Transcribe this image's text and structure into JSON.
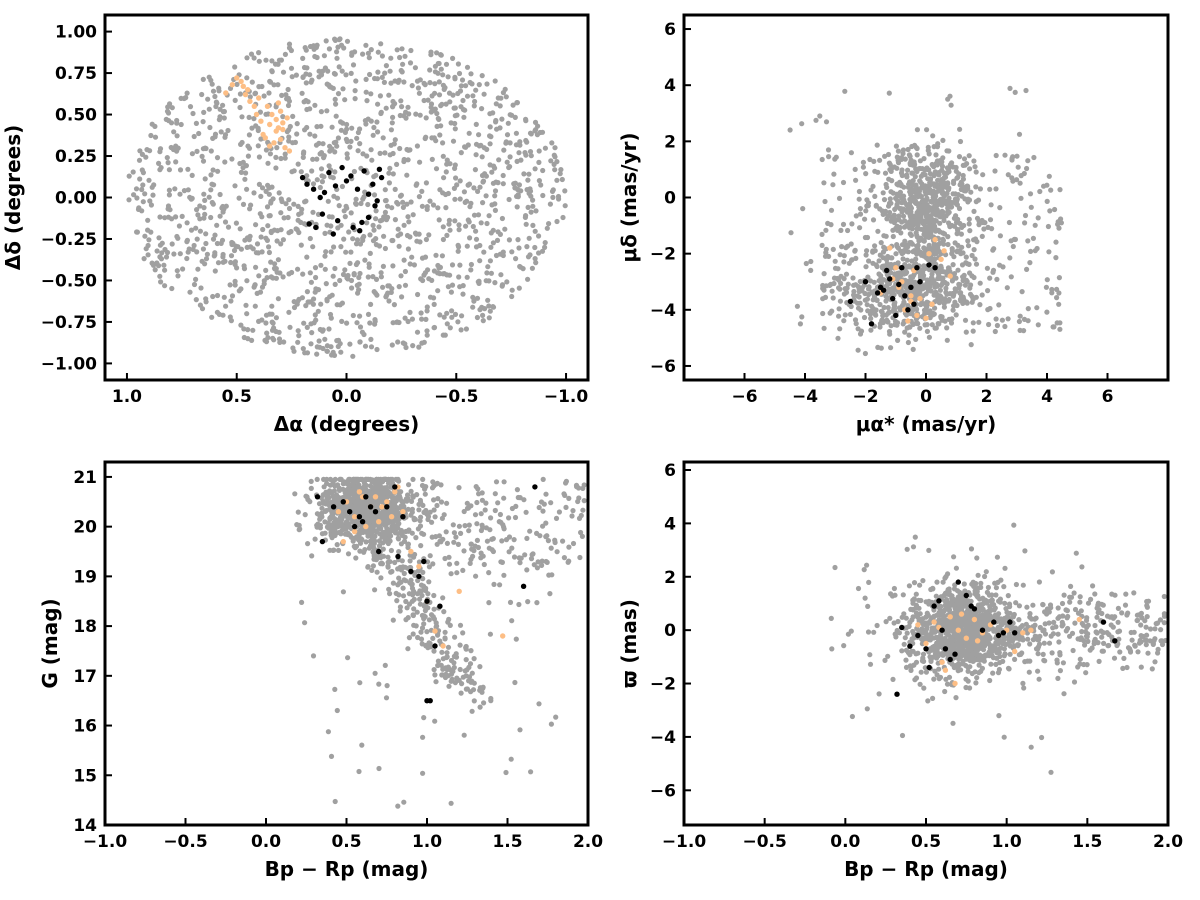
{
  "colors": {
    "field": "#a0a0a0",
    "orange_group": "#fdbe85",
    "black_group": "#000000"
  },
  "chart_data": [
    {
      "type": "scatter",
      "panel": "top-left",
      "xlabel": "Δα (degrees)",
      "ylabel": "Δδ (degrees)",
      "xlim": [
        1.1,
        -1.1
      ],
      "ylim": [
        -1.1,
        1.1
      ],
      "x_inverted": true,
      "xticks": [
        "1.0",
        "0.5",
        "0.0",
        "−0.5",
        "−1.0"
      ],
      "yticks": [
        "1.00",
        "0.75",
        "0.50",
        "0.25",
        "0.00",
        "−0.25",
        "−0.50",
        "−0.75",
        "−1.00"
      ],
      "grid": false,
      "field_shape": "ellipse centered at (0,0), rx≈1.0 deg, ry≈0.95 deg, uniformly filled",
      "series": [
        {
          "color": "#fdbe85",
          "x": [
            0.28,
            0.3,
            0.32,
            0.29,
            0.34,
            0.36,
            0.31,
            0.27,
            0.38,
            0.33,
            0.35,
            0.3,
            0.4,
            0.45,
            0.48,
            0.5,
            0.52,
            0.46,
            0.44,
            0.42,
            0.39,
            0.37,
            0.26,
            0.32,
            0.29,
            0.41,
            0.55,
            0.47,
            0.35,
            0.31
          ],
          "y": [
            0.3,
            0.35,
            0.4,
            0.45,
            0.5,
            0.55,
            0.42,
            0.48,
            0.38,
            0.33,
            0.44,
            0.52,
            0.6,
            0.65,
            0.7,
            0.72,
            0.68,
            0.62,
            0.58,
            0.55,
            0.46,
            0.36,
            0.28,
            0.47,
            0.41,
            0.5,
            0.63,
            0.67,
            0.31,
            0.57
          ]
        },
        {
          "color": "#000000",
          "x": [
            0.2,
            0.18,
            0.15,
            0.1,
            0.08,
            0.05,
            0.02,
            0.0,
            -0.02,
            -0.05,
            -0.08,
            -0.1,
            -0.12,
            -0.15,
            -0.16,
            -0.13,
            -0.1,
            -0.07,
            -0.03,
            0.04,
            0.11,
            0.14,
            0.17,
            -0.06,
            0.06,
            0.12,
            -0.14
          ],
          "y": [
            0.12,
            0.08,
            0.05,
            0.03,
            0.15,
            0.07,
            0.18,
            0.1,
            0.13,
            0.05,
            0.16,
            0.02,
            0.08,
            0.17,
            0.12,
            -0.05,
            -0.12,
            -0.15,
            -0.18,
            -0.14,
            -0.1,
            -0.18,
            -0.16,
            -0.2,
            -0.22,
            0.0,
            -0.02
          ]
        }
      ]
    },
    {
      "type": "scatter",
      "panel": "top-right",
      "xlabel": "μα* (mas/yr)",
      "ylabel": "μδ (mas/yr)",
      "xlim": [
        -8,
        8
      ],
      "ylim": [
        -6.5,
        6.5
      ],
      "xticks": [
        "−6",
        "−4",
        "−2",
        "0",
        "2",
        "4",
        "6"
      ],
      "yticks": [
        "6",
        "4",
        "2",
        "0",
        "−2",
        "−4",
        "−6"
      ],
      "grid": false,
      "field_shape": "broad cloud centred near (0,-1.5), concentrated near (0,0) and (-1,-3.5)",
      "series": [
        {
          "color": "#fdbe85",
          "x": [
            -1.2,
            -1.0,
            -0.8,
            -0.5,
            -0.3,
            0.0,
            0.2,
            0.5,
            0.8,
            -0.6,
            -0.9,
            -0.4,
            0.3,
            -1.5,
            -0.7,
            0.1,
            -0.2,
            -1.1,
            0.6,
            -0.5
          ],
          "y": [
            -1.8,
            -2.5,
            -3.0,
            -3.5,
            -4.2,
            -4.3,
            -3.8,
            -2.2,
            -2.8,
            -4.4,
            -3.2,
            -2.6,
            -1.5,
            -3.4,
            -4.0,
            -2.0,
            -3.6,
            -2.9,
            -1.9,
            -3.7
          ]
        },
        {
          "color": "#000000",
          "x": [
            -2.5,
            -2.0,
            -1.8,
            -1.5,
            -1.3,
            -1.1,
            -1.0,
            -0.9,
            -0.8,
            -0.7,
            -0.5,
            -0.3,
            -0.2,
            0.1,
            0.3,
            -1.6,
            -0.4,
            -1.2,
            -0.6,
            -1.4
          ],
          "y": [
            -3.7,
            -3.0,
            -4.5,
            -3.2,
            -2.6,
            -3.6,
            -4.2,
            -3.1,
            -2.5,
            -3.5,
            -3.2,
            -2.5,
            -3.0,
            -2.4,
            -2.5,
            -3.4,
            -3.8,
            -2.9,
            -4.0,
            -3.3
          ]
        }
      ]
    },
    {
      "type": "scatter",
      "panel": "bottom-left",
      "xlabel": "Bp − Rp (mag)",
      "ylabel": "G (mag)",
      "xlim": [
        -1.0,
        2.0
      ],
      "ylim": [
        14,
        21.3
      ],
      "xticks": [
        "−1.0",
        "−0.5",
        "0.0",
        "0.5",
        "1.0",
        "1.5",
        "2.0"
      ],
      "yticks": [
        "21",
        "20",
        "19",
        "18",
        "17",
        "16",
        "15",
        "14"
      ],
      "grid": false,
      "field_shape": "dense clump near colour 0.5–0.9, G 19.5–21 with a diagonal branch down to (1.2,16.5) and a red tail toward colour 2.0",
      "series": [
        {
          "color": "#fdbe85",
          "x": [
            0.45,
            0.5,
            0.55,
            0.6,
            0.65,
            0.7,
            0.75,
            0.8,
            0.85,
            0.55,
            0.62,
            0.72,
            0.78,
            0.9,
            1.0,
            1.05,
            1.1,
            1.2,
            1.47,
            0.58,
            0.68,
            0.82,
            0.48,
            0.95
          ],
          "y": [
            20.3,
            20.5,
            20.2,
            20.6,
            20.4,
            20.1,
            20.5,
            20.7,
            20.3,
            19.9,
            20.0,
            20.4,
            20.2,
            19.5,
            18.5,
            17.9,
            17.6,
            18.7,
            17.8,
            20.7,
            20.6,
            20.8,
            19.7,
            19.2
          ]
        },
        {
          "color": "#000000",
          "x": [
            0.32,
            0.35,
            0.48,
            0.52,
            0.55,
            0.58,
            0.6,
            0.62,
            0.65,
            0.7,
            0.75,
            0.8,
            0.85,
            0.9,
            0.95,
            1.0,
            1.02,
            1.08,
            1.6,
            1.67,
            0.42,
            0.68,
            0.82,
            0.98,
            1.05,
            1.0
          ],
          "y": [
            20.6,
            19.7,
            20.5,
            20.3,
            20.0,
            20.2,
            20.1,
            20.6,
            20.4,
            19.5,
            20.4,
            20.8,
            20.2,
            19.1,
            19.0,
            18.5,
            16.5,
            18.4,
            18.8,
            20.8,
            20.4,
            20.3,
            19.4,
            19.3,
            17.6,
            16.5
          ]
        }
      ]
    },
    {
      "type": "scatter",
      "panel": "bottom-right",
      "xlabel": "Bp − Rp (mag)",
      "ylabel": "ϖ (mas)",
      "xlim": [
        -1.0,
        2.0
      ],
      "ylim": [
        -7.3,
        6.3
      ],
      "xticks": [
        "−1.0",
        "−0.5",
        "0.0",
        "0.5",
        "1.0",
        "1.5",
        "2.0"
      ],
      "yticks": [
        "6",
        "4",
        "2",
        "0",
        "−2",
        "−4",
        "−6"
      ],
      "grid": false,
      "field_shape": "dense clump centred near (0.75, 0) with a horizontal tail toward colour 2.0",
      "series": [
        {
          "color": "#fdbe85",
          "x": [
            0.45,
            0.5,
            0.55,
            0.6,
            0.65,
            0.7,
            0.75,
            0.8,
            0.85,
            0.9,
            0.95,
            1.0,
            1.05,
            1.1,
            1.15,
            1.45,
            0.62,
            0.72,
            0.82,
            0.58,
            0.68
          ],
          "y": [
            0.2,
            -0.5,
            0.3,
            -1.2,
            0.5,
            0.0,
            -0.3,
            0.4,
            -0.1,
            0.2,
            -0.2,
            0.0,
            -0.8,
            -0.1,
            0.0,
            0.4,
            -1.5,
            0.6,
            -0.4,
            0.1,
            -2.0
          ]
        },
        {
          "color": "#000000",
          "x": [
            0.32,
            0.35,
            0.4,
            0.45,
            0.52,
            0.55,
            0.58,
            0.6,
            0.62,
            0.65,
            0.68,
            0.7,
            0.75,
            0.8,
            0.85,
            0.92,
            0.95,
            0.98,
            1.02,
            1.05,
            1.6,
            1.67,
            0.5,
            0.78
          ],
          "y": [
            -2.4,
            0.1,
            -0.6,
            -0.2,
            -1.4,
            0.9,
            1.1,
            0.0,
            -0.7,
            -1.1,
            -0.9,
            1.8,
            1.3,
            0.8,
            0.0,
            0.3,
            -0.2,
            -0.1,
            0.3,
            -0.1,
            0.3,
            -0.4,
            -0.7,
            0.9
          ]
        }
      ]
    }
  ]
}
